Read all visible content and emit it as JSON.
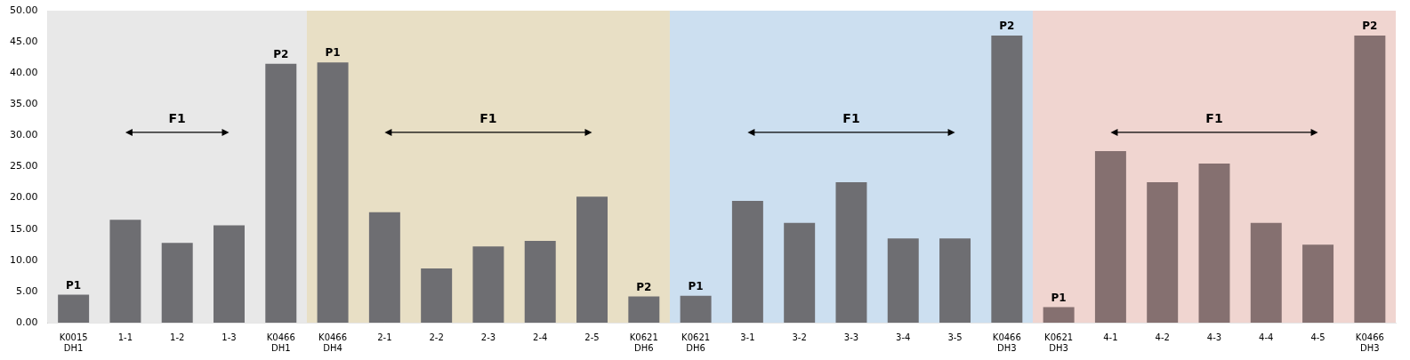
{
  "chart_data": {
    "type": "bar",
    "categories": [
      "K0015\nDH1",
      "1-1",
      "1-2",
      "1-3",
      "K0466\nDH1",
      "K0466\nDH4",
      "2-1",
      "2-2",
      "2-3",
      "2-4",
      "2-5",
      "K0621\nDH6",
      "K0621\nDH6",
      "3-1",
      "3-2",
      "3-3",
      "3-4",
      "3-5",
      "K0466\nDH3",
      "K0621\nDH3",
      "4-1",
      "4-2",
      "4-3",
      "4-4",
      "4-5",
      "K0466\nDH3"
    ],
    "values": [
      4.5,
      16.5,
      12.8,
      15.6,
      41.5,
      41.7,
      17.7,
      8.7,
      12.2,
      13.1,
      20.2,
      4.2,
      4.3,
      19.5,
      16.0,
      22.5,
      13.5,
      13.5,
      46.0,
      2.5,
      27.5,
      22.5,
      25.5,
      16.0,
      12.5,
      46.0
    ],
    "colors": [
      "#6e6e72",
      "#6e6e72",
      "#6e6e72",
      "#6e6e72",
      "#6e6e72",
      "#6e6e72",
      "#6e6e72",
      "#6e6e72",
      "#6e6e72",
      "#6e6e72",
      "#6e6e72",
      "#6e6e72",
      "#6e6e72",
      "#6e6e72",
      "#6e6e72",
      "#6e6e72",
      "#6e6e72",
      "#6e6e72",
      "#6e6e72",
      "#857070",
      "#857070",
      "#857070",
      "#857070",
      "#857070",
      "#857070",
      "#857070"
    ],
    "bands": [
      {
        "from": 0,
        "to": 4,
        "color": "#e8e8e8"
      },
      {
        "from": 5,
        "to": 11,
        "color": "#e8dfc5"
      },
      {
        "from": 12,
        "to": 18,
        "color": "#ccdff0"
      },
      {
        "from": 19,
        "to": 25,
        "color": "#f0d5d0"
      }
    ],
    "annotations": [
      {
        "text": "P1",
        "index": 0
      },
      {
        "text": "P2",
        "index": 4
      },
      {
        "text": "P1",
        "index": 5
      },
      {
        "text": "P2",
        "index": 11
      },
      {
        "text": "P1",
        "index": 12
      },
      {
        "text": "P2",
        "index": 18
      },
      {
        "text": "P1",
        "index": 19
      },
      {
        "text": "P2",
        "index": 25
      }
    ],
    "arrows": [
      {
        "text": "F1",
        "from": 1,
        "to": 3,
        "y": 30.5
      },
      {
        "text": "F1",
        "from": 6,
        "to": 10,
        "y": 30.5
      },
      {
        "text": "F1",
        "from": 13,
        "to": 17,
        "y": 30.5
      },
      {
        "text": "F1",
        "from": 20,
        "to": 24,
        "y": 30.5
      }
    ],
    "ylim": [
      0,
      50
    ],
    "yticks": [
      {
        "value": 0.0,
        "label": "0.00"
      },
      {
        "value": 5.0,
        "label": "5.00"
      },
      {
        "value": 10.0,
        "label": "10.00"
      },
      {
        "value": 15.0,
        "label": "15.00"
      },
      {
        "value": 20.0,
        "label": "20.00"
      },
      {
        "value": 25.0,
        "label": "25.00"
      },
      {
        "value": 30.0,
        "label": "30.00"
      },
      {
        "value": 35.0,
        "label": "35.00"
      },
      {
        "value": 40.0,
        "label": "40.00"
      },
      {
        "value": 45.0,
        "label": "45.00"
      },
      {
        "value": 50.0,
        "label": "50.00"
      }
    ],
    "grid": false
  }
}
